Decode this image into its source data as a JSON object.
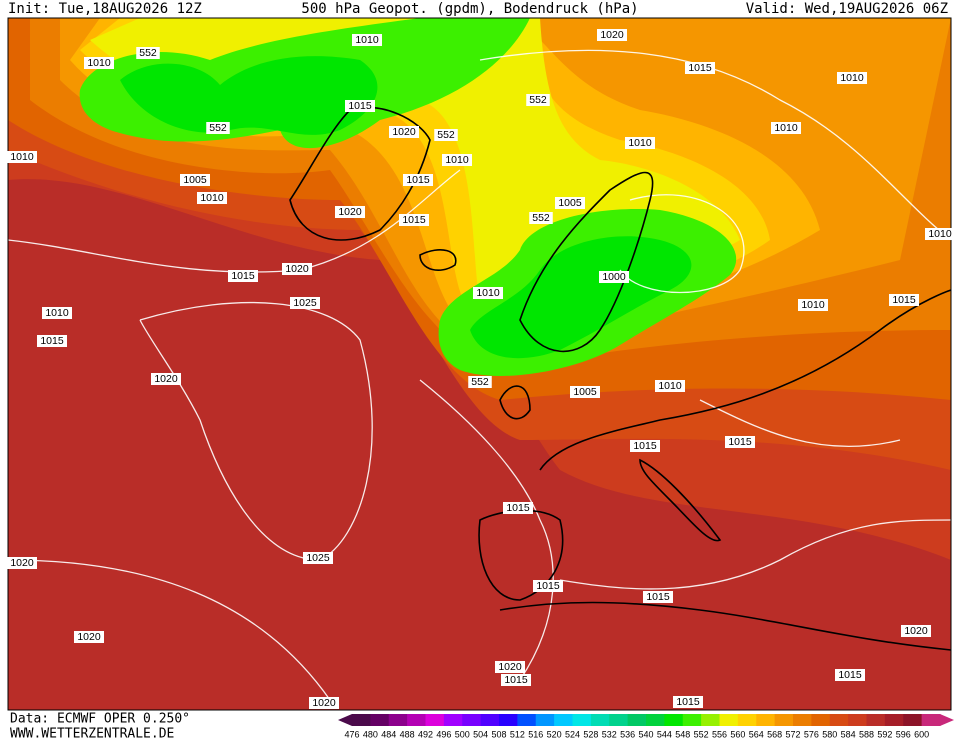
{
  "header": {
    "init": "Init: Tue,18AUG2026 12Z",
    "title": "500 hPa Geopot. (gpdm), Bodendruck (hPa)",
    "valid": "Valid: Wed,19AUG2026 06Z"
  },
  "isobar_labels": [
    "1010",
    "552",
    "1010",
    "1020",
    "1015",
    "1010",
    "552",
    "1015",
    "552",
    "1020",
    "552",
    "1010",
    "1010",
    "1010",
    "1010",
    "1005",
    "1015",
    "1010",
    "1005",
    "1020",
    "1015",
    "552",
    "1010",
    "1015",
    "1020",
    "1000",
    "1010",
    "1025",
    "1015",
    "1010",
    "1010",
    "1015",
    "1020",
    "552",
    "1005",
    "1010",
    "1015",
    "1015",
    "1015",
    "1025",
    "1020",
    "1015",
    "1015",
    "1020",
    "1020",
    "1020",
    "1015",
    "1015",
    "1015",
    "1020"
  ],
  "footer": {
    "source": "Data: ECMWF OPER 0.250°",
    "site": "WWW.WETTERZENTRALE.DE"
  },
  "scale": {
    "labels": [
      "476",
      "480",
      "484",
      "488",
      "492",
      "496",
      "500",
      "504",
      "508",
      "512",
      "516",
      "520",
      "524",
      "528",
      "532",
      "536",
      "540",
      "544",
      "548",
      "552",
      "556",
      "560",
      "564",
      "568",
      "572",
      "576",
      "580",
      "584",
      "588",
      "592",
      "596",
      "600"
    ],
    "colors": [
      "#4b0a4b",
      "#640064",
      "#8c008c",
      "#b400b4",
      "#dc00dc",
      "#a000ff",
      "#7800ff",
      "#5000ff",
      "#2800ff",
      "#0050ff",
      "#0096ff",
      "#00c8ff",
      "#00e6e6",
      "#00dcb4",
      "#00d28c",
      "#00c864",
      "#00d23c",
      "#00e600",
      "#3cf000",
      "#96f000",
      "#f0f000",
      "#ffd200",
      "#ffb400",
      "#f59600",
      "#eb7d00",
      "#e16400",
      "#d74b14",
      "#cd3c1e",
      "#b92d28",
      "#a51e28",
      "#8c1428",
      "#c8287a"
    ]
  }
}
